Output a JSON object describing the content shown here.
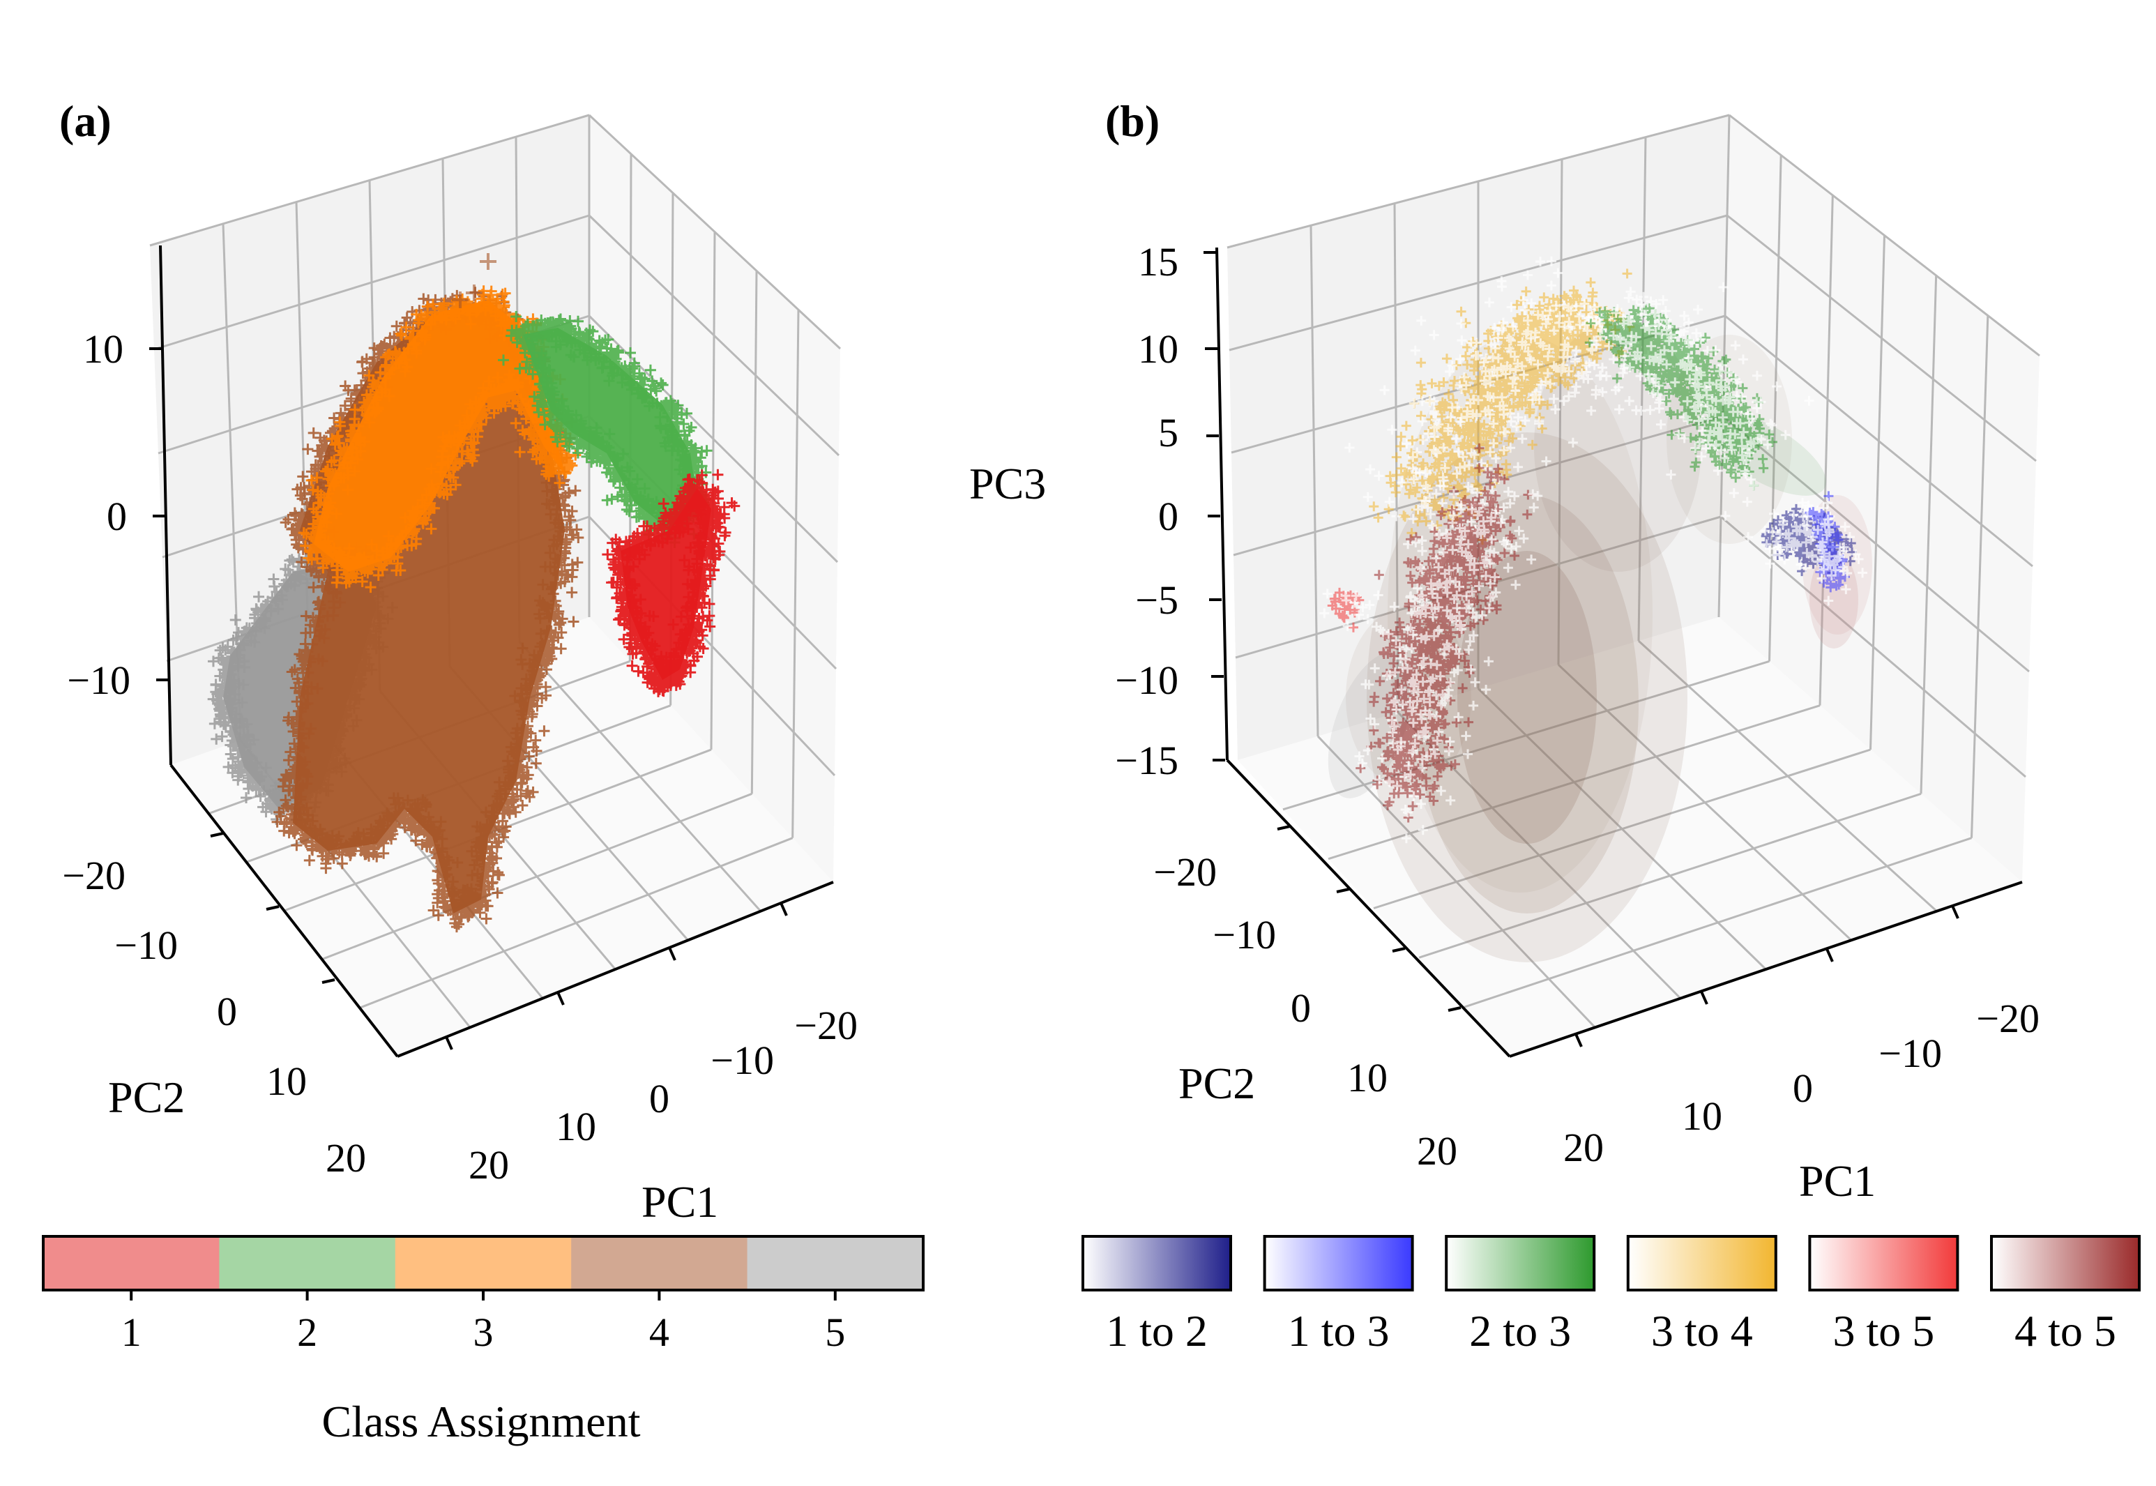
{
  "chart_data": [
    {
      "panel_label": "(a)",
      "type": "scatter3d",
      "marker": "+",
      "xlabel": "PC1",
      "ylabel": "PC2",
      "zlabel": "",
      "pc1_ticks": [
        "−20",
        "−10",
        "0",
        "10",
        "20"
      ],
      "pc2_ticks": [
        "−20",
        "−10",
        "0",
        "10",
        "20"
      ],
      "pc3_ticks": [
        "−10",
        "0",
        "10"
      ],
      "xlim": [
        -25,
        25
      ],
      "ylim": [
        -25,
        25
      ],
      "zlim": [
        -15,
        15
      ],
      "series": [
        {
          "class": 1,
          "color": "#e41a1c",
          "pc1_range": [
            -20,
            -12
          ],
          "pc2_range": [
            0,
            8
          ],
          "pc3_range": [
            -10,
            3
          ]
        },
        {
          "class": 2,
          "color": "#4daf4a",
          "pc1_range": [
            -14,
            0
          ],
          "pc2_range": [
            -5,
            5
          ],
          "pc3_range": [
            0,
            12
          ]
        },
        {
          "class": 3,
          "color": "#ff7f00",
          "pc1_range": [
            -2,
            8
          ],
          "pc2_range": [
            -8,
            5
          ],
          "pc3_range": [
            2,
            13
          ]
        },
        {
          "class": 4,
          "color": "#a65628",
          "pc1_range": [
            0,
            20
          ],
          "pc2_range": [
            -10,
            10
          ],
          "pc3_range": [
            -15,
            13
          ]
        },
        {
          "class": 5,
          "color": "#999999",
          "pc1_range": [
            5,
            15
          ],
          "pc2_range": [
            -20,
            -8
          ],
          "pc3_range": [
            -12,
            0
          ]
        }
      ],
      "colorbar": {
        "label": "Class Assignment",
        "ticks": [
          "1",
          "2",
          "3",
          "4",
          "5"
        ],
        "colors": [
          "#f08c8c",
          "#a5d6a4",
          "#ffbf80",
          "#d2a892",
          "#cccccc"
        ]
      }
    },
    {
      "panel_label": "(b)",
      "type": "scatter3d",
      "marker": "+",
      "xlabel": "PC1",
      "ylabel": "PC2",
      "zlabel": "PC3",
      "pc1_ticks": [
        "−20",
        "−10",
        "0",
        "10",
        "20"
      ],
      "pc2_ticks": [
        "−20",
        "−10",
        "0",
        "10",
        "20"
      ],
      "pc3_ticks": [
        "−15",
        "−10",
        "−5",
        "0",
        "5",
        "10",
        "15"
      ],
      "xlim": [
        -25,
        25
      ],
      "ylim": [
        -25,
        25
      ],
      "zlim": [
        -15,
        15
      ],
      "series": [
        {
          "name": "1 to 2",
          "color": "#1f1f8a"
        },
        {
          "name": "1 to 3",
          "color": "#3a3aff"
        },
        {
          "name": "2 to 3",
          "color": "#2e9a2e"
        },
        {
          "name": "3 to 4",
          "color": "#f2b630"
        },
        {
          "name": "3 to 5",
          "color": "#f23a3a"
        },
        {
          "name": "4 to 5",
          "color": "#9a2a2a"
        }
      ],
      "gaussian_ellipsoids_color": "#8c6e5e"
    }
  ]
}
